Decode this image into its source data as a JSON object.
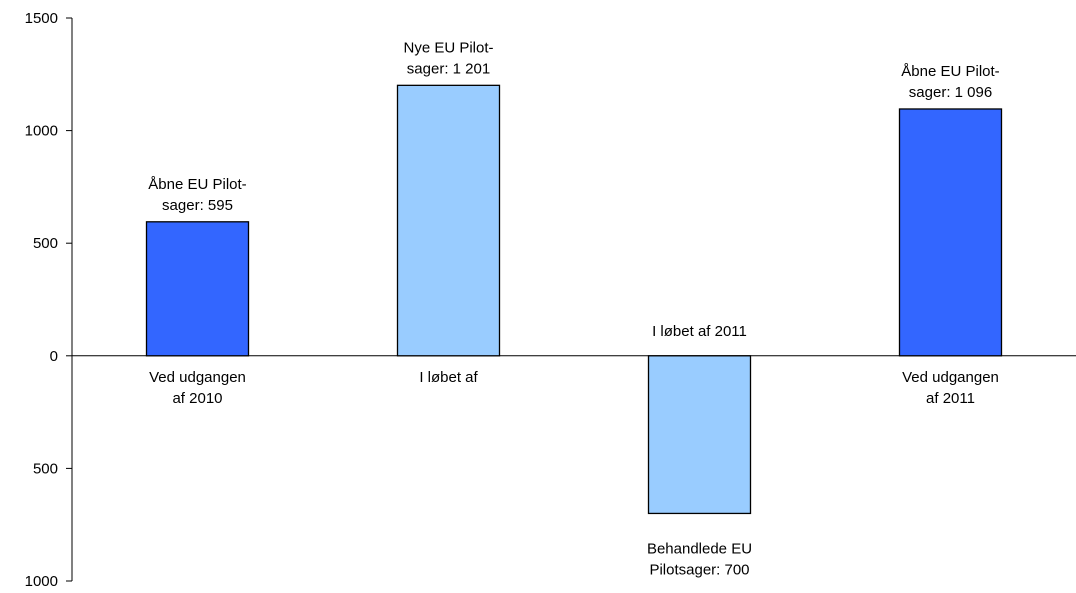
{
  "chart_data": {
    "type": "bar",
    "categories": [
      "Ved udgangen af 2010",
      "I løbet af",
      "I løbet af 2011",
      "Ved udgangen af 2011"
    ],
    "values": [
      595,
      1201,
      -700,
      1096
    ],
    "ylim": [
      -1000,
      1500
    ],
    "yticks": [
      {
        "value": 1500,
        "label": "1500"
      },
      {
        "value": 1000,
        "label": "1000"
      },
      {
        "value": 500,
        "label": "500"
      },
      {
        "value": 0,
        "label": "0"
      },
      {
        "value": -500,
        "label": "500"
      },
      {
        "value": -1000,
        "label": "1000"
      }
    ],
    "category_labels": [
      [
        "Ved udgangen",
        "af 2010"
      ],
      [
        "I løbet af"
      ],
      [
        "I løbet af 2011"
      ],
      [
        "Ved udgangen",
        "af 2011"
      ]
    ],
    "data_labels": [
      [
        "Åbne EU Pilot-",
        "sager: 595"
      ],
      [
        "Nye EU Pilot-",
        "sager: 1 201"
      ],
      [
        "Behandlede EU",
        "Pilotsager: 700"
      ],
      [
        "Åbne EU Pilot-",
        "sager: 1 096"
      ]
    ],
    "bar_colors": [
      "#3366FF",
      "#99CCFF",
      "#99CCFF",
      "#3366FF"
    ],
    "grid": false,
    "legend": "none"
  }
}
